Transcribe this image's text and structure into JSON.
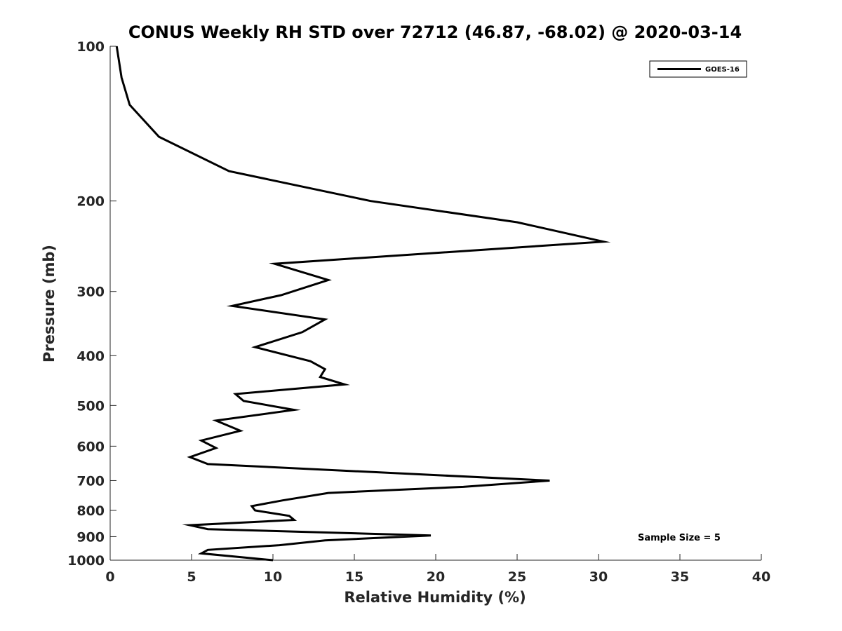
{
  "chart_data": {
    "type": "line",
    "title": "CONUS Weekly RH STD over 72712 (46.87, -68.02) @ 2020-03-14",
    "xlabel": "Relative Humidity (%)",
    "ylabel": "Pressure (mb)",
    "xlim": [
      0,
      40
    ],
    "ylim": [
      100,
      1000
    ],
    "y_scale": "log",
    "y_reversed": true,
    "x_ticks": [
      0,
      5,
      10,
      15,
      20,
      25,
      30,
      35,
      40
    ],
    "y_ticks": [
      100,
      200,
      300,
      400,
      500,
      600,
      700,
      800,
      900,
      1000
    ],
    "grid": false,
    "legend_position": "top-right",
    "series": [
      {
        "name": "GOES-16",
        "color": "#000000",
        "x": [
          0.4,
          0.7,
          1.2,
          3.0,
          7.3,
          16.0,
          25.0,
          30.3,
          10.1,
          13.4,
          10.5,
          7.5,
          13.2,
          11.8,
          8.9,
          12.3,
          13.2,
          12.9,
          14.4,
          7.7,
          8.2,
          11.3,
          6.5,
          8.0,
          5.6,
          6.5,
          4.9,
          6.0,
          27.0,
          21.7,
          13.4,
          10.6,
          8.7,
          8.9,
          11.0,
          11.3,
          4.9,
          6.0,
          19.7,
          13.2,
          10.4,
          6.0,
          5.6,
          10.0
        ],
        "y": [
          100,
          115,
          130,
          150,
          175,
          200,
          220,
          240,
          265,
          285,
          305,
          320,
          340,
          360,
          385,
          410,
          425,
          440,
          455,
          475,
          490,
          510,
          535,
          560,
          585,
          605,
          630,
          650,
          700,
          720,
          740,
          765,
          785,
          800,
          820,
          835,
          855,
          870,
          895,
          915,
          935,
          955,
          970,
          1000
        ]
      }
    ],
    "annotations": [
      "Sample Size = 5"
    ]
  }
}
